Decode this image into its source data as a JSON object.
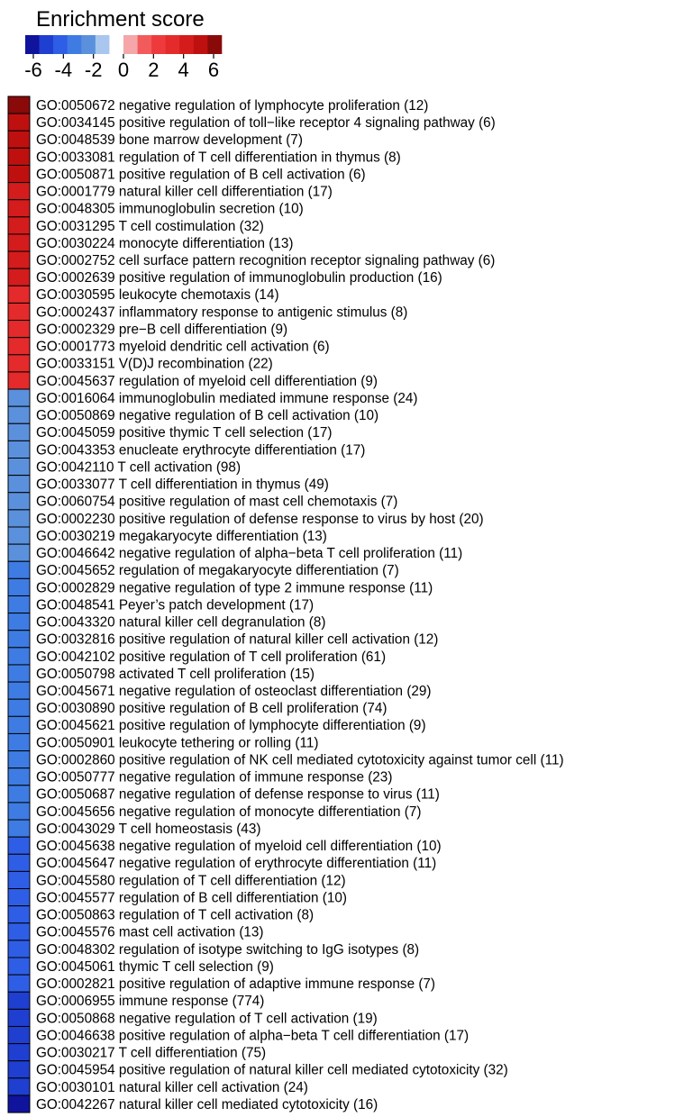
{
  "chart_data": {
    "type": "heatmap",
    "legend": {
      "title": "Enrichment score",
      "ticks": [
        -6,
        -4,
        -2,
        0,
        2,
        4,
        6
      ],
      "tick_labels": [
        "-6",
        "-4",
        "-2",
        "0",
        "2",
        "4",
        "6"
      ],
      "range": [
        -6,
        6
      ],
      "colors": [
        "#10139c",
        "#1f3fd0",
        "#2f5ee6",
        "#3e7ce3",
        "#5b91dc",
        "#a8c6ee",
        "#ffffff",
        "#f4a6a8",
        "#f25a5c",
        "#ee3a3c",
        "#e42a2a",
        "#d41c1c",
        "#bf1010",
        "#8a0a0a"
      ]
    },
    "rows": [
      {
        "term": "GO:0050672 negative regulation of lymphocyte proliferation (12)",
        "score": 6.0
      },
      {
        "term": "GO:0034145 positive regulation of toll−like receptor 4 signaling pathway (6)",
        "score": 5.0
      },
      {
        "term": "GO:0048539 bone marrow development (7)",
        "score": 4.7
      },
      {
        "term": "GO:0033081 regulation of T cell differentiation in thymus (8)",
        "score": 4.5
      },
      {
        "term": "GO:0050871 positive regulation of B cell activation (6)",
        "score": 4.4
      },
      {
        "term": "GO:0001779 natural killer cell differentiation (17)",
        "score": 4.2
      },
      {
        "term": "GO:0048305 immunoglobulin secretion (10)",
        "score": 4.0
      },
      {
        "term": "GO:0031295 T cell costimulation (32)",
        "score": 3.9
      },
      {
        "term": "GO:0030224 monocyte differentiation (13)",
        "score": 3.7
      },
      {
        "term": "GO:0002752 cell surface pattern recognition receptor signaling pathway (6)",
        "score": 3.6
      },
      {
        "term": "GO:0002639 positive regulation of immunoglobulin production (16)",
        "score": 3.5
      },
      {
        "term": "GO:0030595 leukocyte chemotaxis (14)",
        "score": 3.4
      },
      {
        "term": "GO:0002437 inflammatory response to antigenic stimulus (8)",
        "score": 3.3
      },
      {
        "term": "GO:0002329 pre−B cell differentiation (9)",
        "score": 3.2
      },
      {
        "term": "GO:0001773 myeloid dendritic cell activation (6)",
        "score": 3.1
      },
      {
        "term": "GO:0033151 V(D)J recombination (22)",
        "score": 3.0
      },
      {
        "term": "GO:0045637 regulation of myeloid cell differentiation (9)",
        "score": 3.0
      },
      {
        "term": "GO:0016064 immunoglobulin mediated immune response (24)",
        "score": -2.5
      },
      {
        "term": "GO:0050869 negative regulation of B cell activation (10)",
        "score": -2.5
      },
      {
        "term": "GO:0045059 positive thymic T cell selection (17)",
        "score": -2.5
      },
      {
        "term": "GO:0043353 enucleate erythrocyte differentiation (17)",
        "score": -2.5
      },
      {
        "term": "GO:0042110 T cell activation (98)",
        "score": -2.5
      },
      {
        "term": "GO:0033077 T cell differentiation in thymus (49)",
        "score": -2.5
      },
      {
        "term": "GO:0060754 positive regulation of mast cell chemotaxis (7)",
        "score": -2.5
      },
      {
        "term": "GO:0002230 positive regulation of defense response to virus by host (20)",
        "score": -2.5
      },
      {
        "term": "GO:0030219 megakaryocyte differentiation (13)",
        "score": -2.5
      },
      {
        "term": "GO:0046642 negative regulation of alpha−beta T cell proliferation (11)",
        "score": -2.5
      },
      {
        "term": "GO:0045652 regulation of megakaryocyte differentiation (7)",
        "score": -2.6
      },
      {
        "term": "GO:0002829 negative regulation of type 2 immune response (11)",
        "score": -2.6
      },
      {
        "term": "GO:0048541 Peyer’s patch development (17)",
        "score": -2.6
      },
      {
        "term": "GO:0043320 natural killer cell degranulation (8)",
        "score": -2.6
      },
      {
        "term": "GO:0032816 positive regulation of natural killer cell activation (12)",
        "score": -2.6
      },
      {
        "term": "GO:0042102 positive regulation of T cell proliferation (61)",
        "score": -2.7
      },
      {
        "term": "GO:0050798 activated T cell proliferation (15)",
        "score": -2.7
      },
      {
        "term": "GO:0045671 negative regulation of osteoclast differentiation (29)",
        "score": -2.7
      },
      {
        "term": "GO:0030890 positive regulation of B cell proliferation (74)",
        "score": -2.8
      },
      {
        "term": "GO:0045621 positive regulation of lymphocyte differentiation (9)",
        "score": -2.8
      },
      {
        "term": "GO:0050901 leukocyte tethering or rolling (11)",
        "score": -2.9
      },
      {
        "term": "GO:0002860 positive regulation of NK cell mediated cytotoxicity against tumor cell (11)",
        "score": -3.2
      },
      {
        "term": "GO:0050777 negative regulation of immune response (23)",
        "score": -3.3
      },
      {
        "term": "GO:0050687 negative regulation of defense response to virus (11)",
        "score": -3.3
      },
      {
        "term": "GO:0045656 negative regulation of monocyte differentiation (7)",
        "score": -3.4
      },
      {
        "term": "GO:0043029 T cell homeostasis (43)",
        "score": -3.4
      },
      {
        "term": "GO:0045638 negative regulation of myeloid cell differentiation (10)",
        "score": -3.5
      },
      {
        "term": "GO:0045647 negative regulation of erythrocyte differentiation (11)",
        "score": -3.5
      },
      {
        "term": "GO:0045580 regulation of T cell differentiation (12)",
        "score": -3.6
      },
      {
        "term": "GO:0045577 regulation of B cell differentiation (10)",
        "score": -3.7
      },
      {
        "term": "GO:0050863 regulation of T cell activation (8)",
        "score": -3.8
      },
      {
        "term": "GO:0045576 mast cell activation (13)",
        "score": -3.9
      },
      {
        "term": "GO:0048302 regulation of isotype switching to IgG isotypes (8)",
        "score": -4.0
      },
      {
        "term": "GO:0045061 thymic T cell selection (9)",
        "score": -4.1
      },
      {
        "term": "GO:0002821 positive regulation of adaptive immune response (7)",
        "score": -4.2
      },
      {
        "term": "GO:0006955 immune response (774)",
        "score": -4.3
      },
      {
        "term": "GO:0050868 negative regulation of T cell activation (19)",
        "score": -4.4
      },
      {
        "term": "GO:0046638 positive regulation of alpha−beta T cell differentiation (17)",
        "score": -4.5
      },
      {
        "term": "GO:0030217 T cell differentiation (75)",
        "score": -4.6
      },
      {
        "term": "GO:0045954 positive regulation of natural killer cell mediated cytotoxicity (32)",
        "score": -4.8
      },
      {
        "term": "GO:0030101 natural killer cell activation (24)",
        "score": -5.0
      },
      {
        "term": "GO:0042267 natural killer cell mediated cytotoxicity (16)",
        "score": -6.0
      }
    ]
  }
}
